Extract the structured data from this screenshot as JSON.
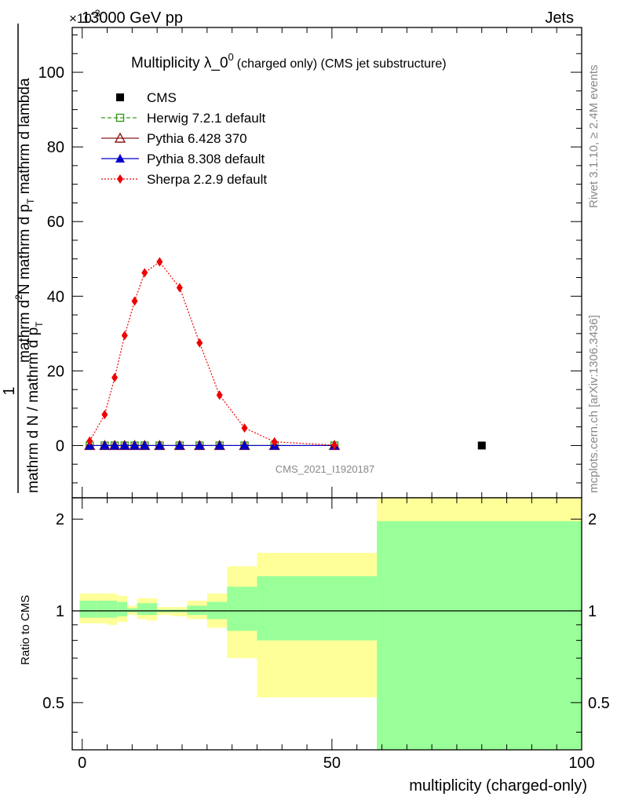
{
  "header": {
    "energy_label": "13000 GeV pp",
    "process_label": "Jets",
    "multiplier": "×10",
    "multiplier_exp": "-3"
  },
  "side_labels": {
    "rivet": "Rivet 3.1.10, ≥ 2.4M events",
    "mcplots": "mcplots.cern.ch [arXiv:1306.3436]"
  },
  "watermark": "CMS_2021_I1920187",
  "chart_data": [
    {
      "type": "line",
      "title_main": "Multiplicity λ_0",
      "title_exp": "0",
      "title_suffix": "(charged only) (CMS jet substructure)",
      "ylabel_frac_top": "1",
      "ylabel_frac_num": "mathrm d",
      "ylabel_frac_num_sup": "2",
      "ylabel_frac_num_end": "N",
      "ylabel_frac_num_tail": "mathrm d p",
      "ylabel_frac_num_tail_sub": "T",
      "ylabel_frac_num_last": "mathrm d lambda",
      "ylabel_den": "mathrm d N / mathrm d p",
      "ylabel_den_sub": "T",
      "xlim": [
        -2,
        100
      ],
      "ylim": [
        -14,
        112
      ],
      "yticks": [
        0,
        20,
        40,
        60,
        80,
        100
      ],
      "legend_position": "top-left",
      "series": [
        {
          "name": "CMS",
          "style": "data",
          "color": "#000000",
          "x": [
            80
          ],
          "y": [
            0
          ]
        },
        {
          "name": "Herwig 7.2.1 default",
          "style": "herwig",
          "color": "#3a9a1a",
          "x": [
            1.5,
            4.5,
            6.5,
            8.5,
            10.5,
            12.5,
            15.5,
            19.5,
            23.5,
            27.5,
            32.5,
            38.5,
            50.5
          ],
          "y": [
            0,
            0,
            0,
            0,
            0,
            0,
            0,
            0,
            0,
            0,
            0,
            0,
            0
          ]
        },
        {
          "name": "Pythia 6.428 370",
          "style": "pythia6",
          "color": "#8b1a1a",
          "x": [
            1.5,
            4.5,
            6.5,
            8.5,
            10.5,
            12.5,
            15.5,
            19.5,
            23.5,
            27.5,
            32.5,
            38.5,
            50.5
          ],
          "y": [
            0,
            0,
            0,
            0,
            0,
            0,
            0,
            0,
            0,
            0,
            0,
            0,
            0
          ]
        },
        {
          "name": "Pythia 8.308 default",
          "style": "pythia8",
          "color": "#0000cc",
          "x": [
            1.5,
            4.5,
            6.5,
            8.5,
            10.5,
            12.5,
            15.5,
            19.5,
            23.5,
            27.5,
            32.5,
            38.5,
            50.5
          ],
          "y": [
            0,
            0,
            0,
            0,
            0,
            0,
            0,
            0,
            0,
            0,
            0,
            0,
            0
          ]
        },
        {
          "name": "Sherpa 2.2.9 default",
          "style": "sherpa",
          "color": "#ee0000",
          "x": [
            1.5,
            4.5,
            6.5,
            8.5,
            10.5,
            12.5,
            15.5,
            19.5,
            23.5,
            27.5,
            32.5,
            38.5,
            50.5
          ],
          "y": [
            1.2,
            8.3,
            18.2,
            29.5,
            38.7,
            46.3,
            49.2,
            42.3,
            27.5,
            13.5,
            4.7,
            1.0,
            0.1
          ]
        }
      ]
    },
    {
      "type": "area",
      "ylabel": "Ratio to CMS",
      "xlabel": "multiplicity (charged-only)",
      "xlim": [
        -2,
        100
      ],
      "ylim": [
        0.35,
        2.35
      ],
      "yticks": [
        0.5,
        1,
        2
      ],
      "ytick_labels": [
        "0.5",
        "1",
        "2"
      ],
      "xticks": [
        0,
        50,
        100
      ],
      "reference": 1,
      "bands": [
        {
          "x0": -0.5,
          "x1": 3,
          "outer": [
            0.91,
            1.14
          ],
          "inner": [
            0.95,
            1.08
          ]
        },
        {
          "x0": 3,
          "x1": 5,
          "outer": [
            0.91,
            1.14
          ],
          "inner": [
            0.95,
            1.08
          ]
        },
        {
          "x0": 5,
          "x1": 7,
          "outer": [
            0.9,
            1.14
          ],
          "inner": [
            0.95,
            1.08
          ]
        },
        {
          "x0": 7,
          "x1": 9,
          "outer": [
            0.92,
            1.12
          ],
          "inner": [
            0.96,
            1.07
          ]
        },
        {
          "x0": 9,
          "x1": 11,
          "outer": [
            0.97,
            1.04
          ],
          "inner": [
            0.99,
            1.02
          ]
        },
        {
          "x0": 11,
          "x1": 13,
          "outer": [
            0.94,
            1.1
          ],
          "inner": [
            0.97,
            1.06
          ]
        },
        {
          "x0": 13,
          "x1": 15,
          "outer": [
            0.93,
            1.1
          ],
          "inner": [
            0.97,
            1.06
          ]
        },
        {
          "x0": 15,
          "x1": 18,
          "outer": [
            0.97,
            1.03
          ],
          "inner": [
            0.99,
            1.01
          ]
        },
        {
          "x0": 18,
          "x1": 21,
          "outer": [
            0.96,
            1.03
          ],
          "inner": [
            0.99,
            1.01
          ]
        },
        {
          "x0": 21,
          "x1": 25,
          "outer": [
            0.94,
            1.08
          ],
          "inner": [
            0.97,
            1.04
          ]
        },
        {
          "x0": 25,
          "x1": 29,
          "outer": [
            0.88,
            1.14
          ],
          "inner": [
            0.94,
            1.07
          ]
        },
        {
          "x0": 29,
          "x1": 35,
          "outer": [
            0.7,
            1.4
          ],
          "inner": [
            0.86,
            1.2
          ]
        },
        {
          "x0": 35,
          "x1": 59,
          "outer": [
            0.52,
            1.55
          ],
          "inner": [
            0.8,
            1.3
          ]
        },
        {
          "x0": 59,
          "x1": 100,
          "outer": [
            0.35,
            2.35
          ],
          "inner": [
            0.35,
            1.97
          ]
        }
      ]
    }
  ]
}
